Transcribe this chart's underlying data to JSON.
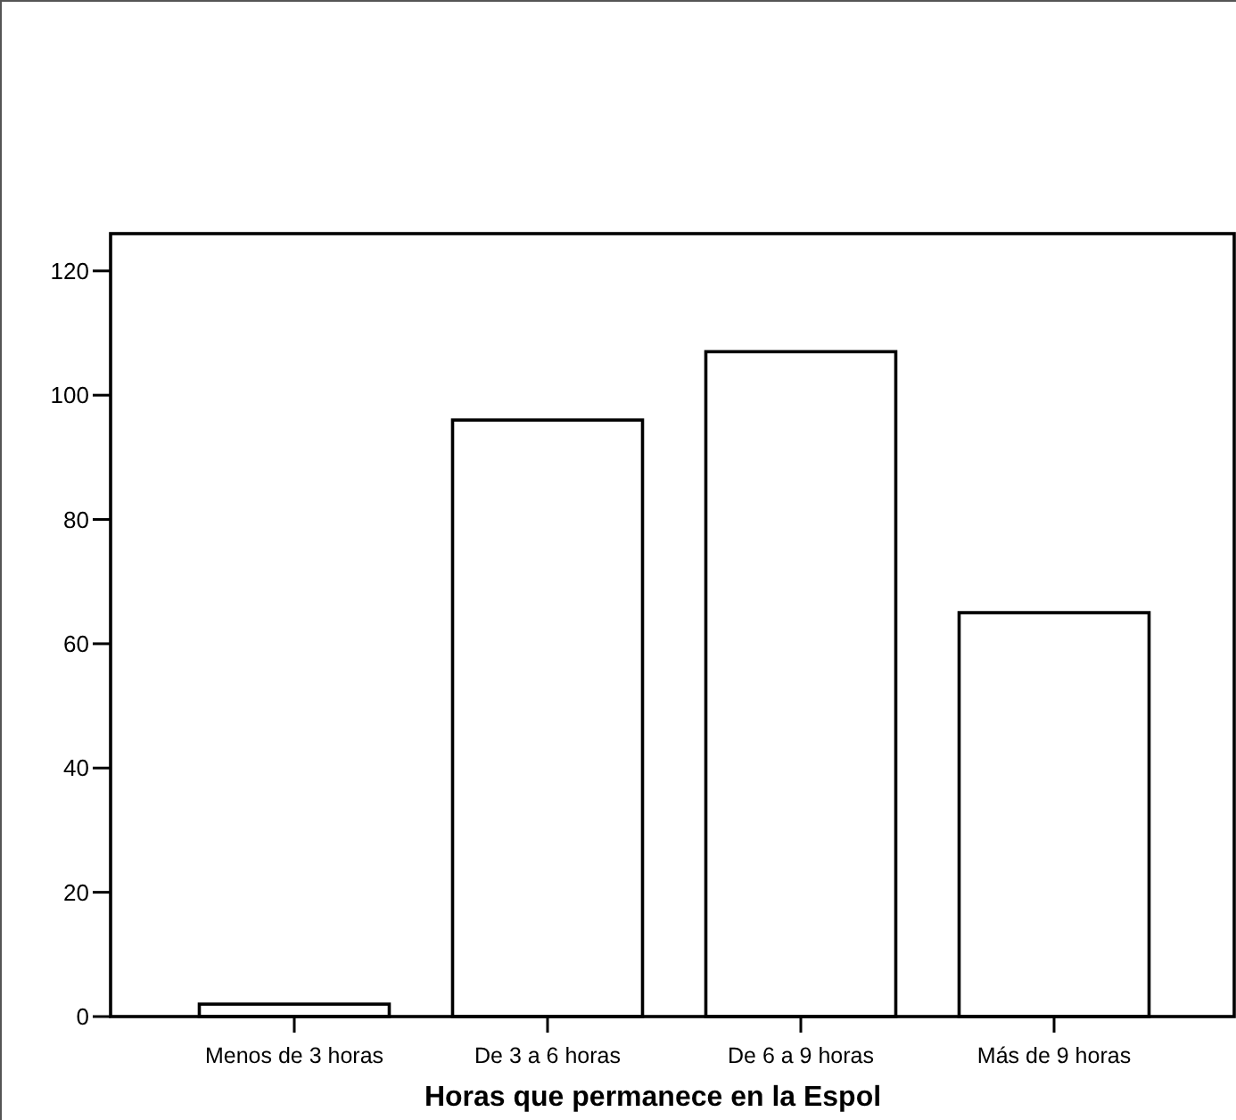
{
  "chart_data": {
    "type": "bar",
    "xlabel": "Horas que permanece en la Espol",
    "categories": [
      "Menos de 3 horas",
      "De 3 a 6 horas",
      "De 6 a 9 horas",
      "Más de 9 horas"
    ],
    "values": [
      2,
      96,
      107,
      65
    ],
    "color": "#ffffff",
    "ylim": [
      0,
      126
    ],
    "yticks": [
      0,
      20,
      40,
      60,
      80,
      100,
      120
    ],
    "grid": false
  }
}
